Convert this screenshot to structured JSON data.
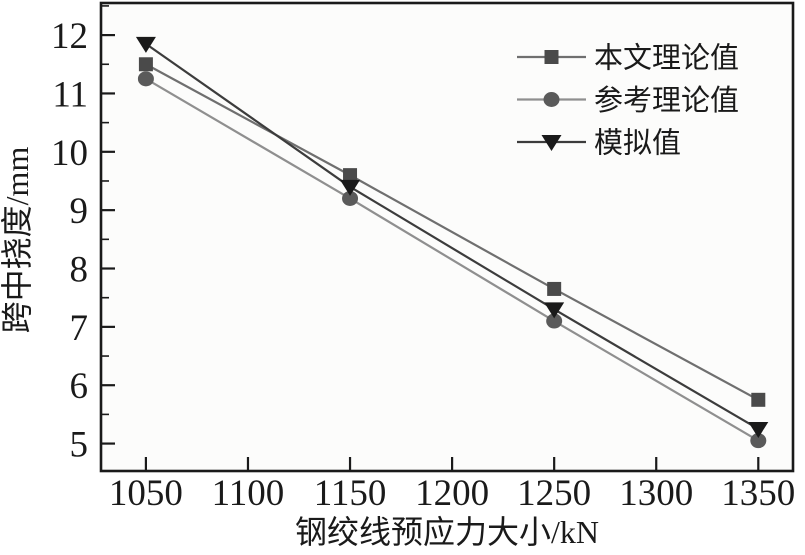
{
  "colors": {
    "background": "#ffffff",
    "plot_background": "#fcfcfb",
    "frame": "#1a1a1a",
    "text": "#1a1a1a"
  },
  "chart_data": {
    "type": "line",
    "title": "",
    "xlabel": "钢绞线预应力大小/kN",
    "ylabel": "跨中挠度/mm",
    "x": [
      1050,
      1150,
      1250,
      1350
    ],
    "series": [
      {
        "name": "本文理论值",
        "marker": "square",
        "values": [
          11.5,
          9.6,
          7.65,
          5.75
        ],
        "line_color": "#6f6f6f",
        "marker_color": "#4a4a4a"
      },
      {
        "name": "参考理论值",
        "marker": "circle",
        "values": [
          11.25,
          9.2,
          7.1,
          5.05
        ],
        "line_color": "#8f8f8f",
        "marker_color": "#5a5a5a"
      },
      {
        "name": "模拟值",
        "marker": "triangle-down",
        "values": [
          11.85,
          9.4,
          7.3,
          5.25
        ],
        "line_color": "#3c3c3c",
        "marker_color": "#1a1a1a"
      }
    ],
    "x_ticks": [
      1050,
      1100,
      1150,
      1200,
      1250,
      1300,
      1350
    ],
    "y_ticks": [
      5,
      6,
      7,
      8,
      9,
      10,
      11,
      12
    ],
    "y_minor_step": 0.5,
    "xlim": [
      1028,
      1367
    ],
    "ylim": [
      4.53,
      12.55
    ],
    "grid": false,
    "legend_position": "top-right"
  }
}
